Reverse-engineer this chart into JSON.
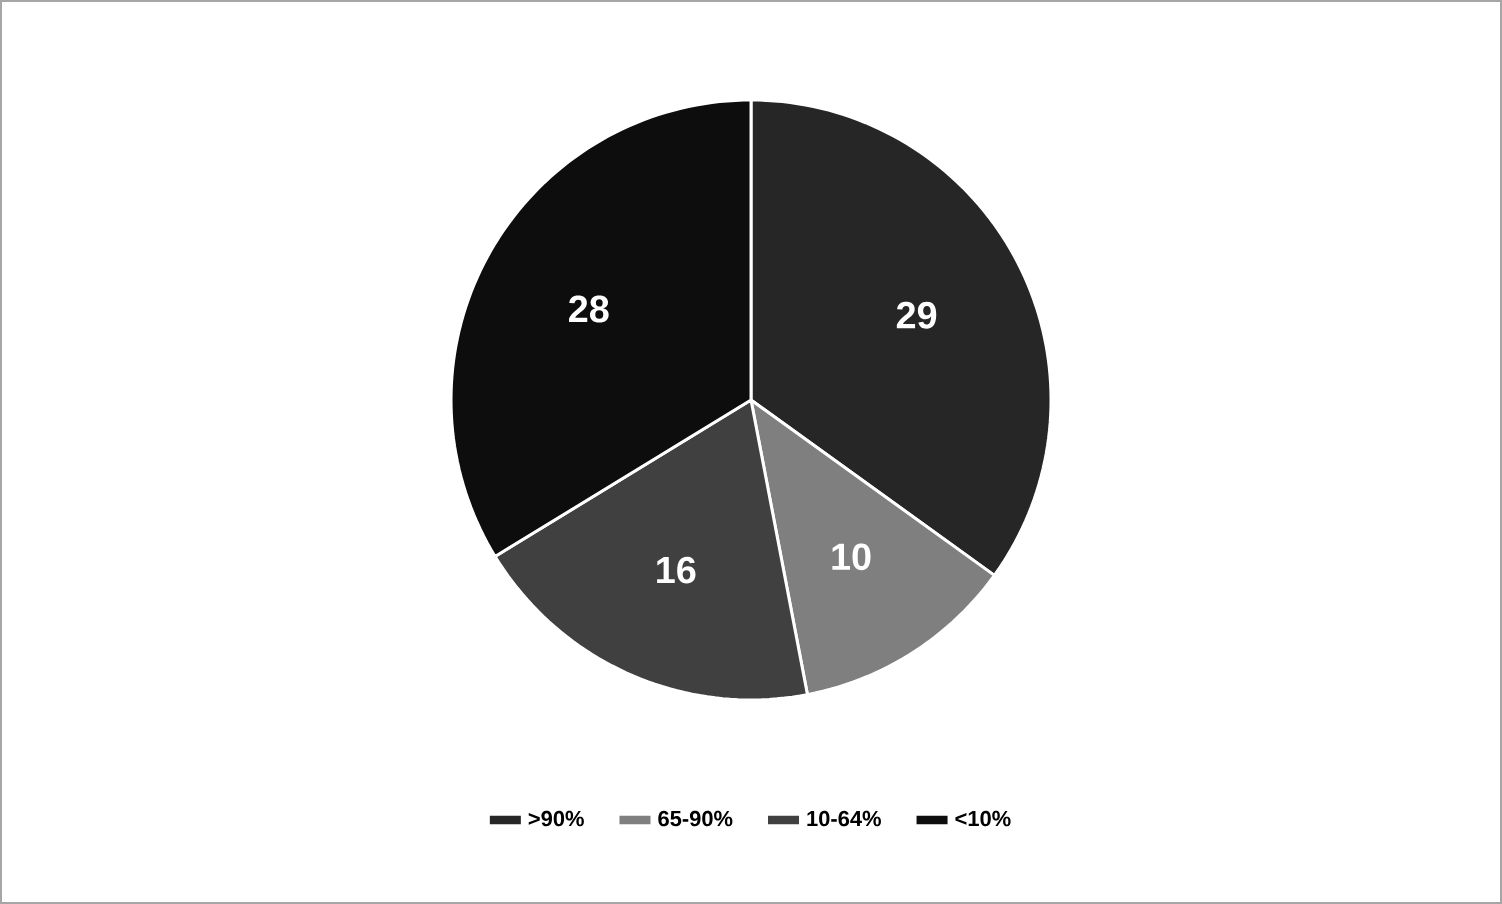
{
  "chart_data": {
    "type": "pie",
    "categories": [
      ">90%",
      "65-90%",
      "10-64%",
      "<10%"
    ],
    "values": [
      29,
      10,
      16,
      28
    ],
    "colors": [
      "#262626",
      "#7f7f7f",
      "#404040",
      "#0d0d0d"
    ],
    "data_labels": true,
    "legend": "bottom"
  }
}
